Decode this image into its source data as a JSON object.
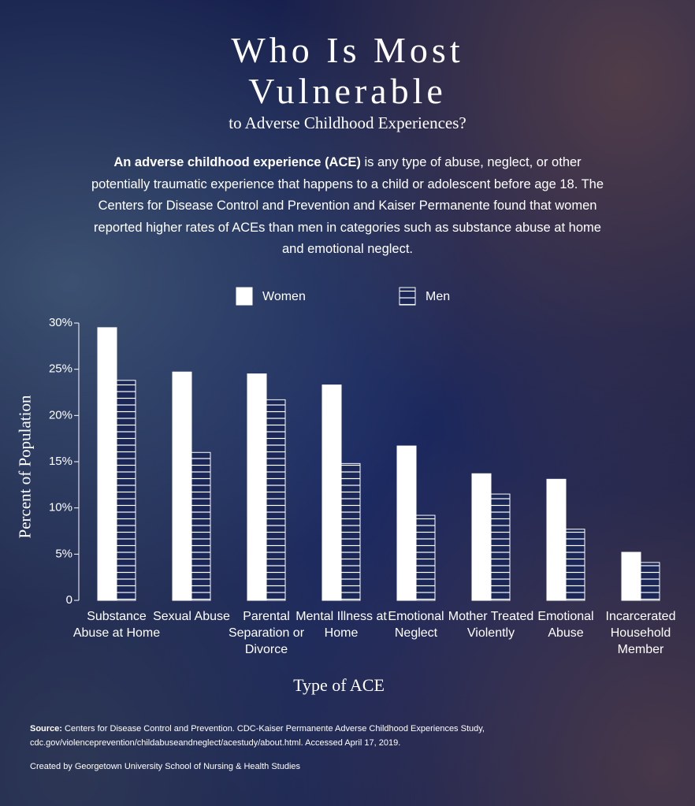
{
  "chart_data": {
    "type": "bar",
    "title": "Who Is Most Vulnerable",
    "subtitle": "to Adverse Childhood Experiences?",
    "description_bold": "An adverse childhood experience (ACE)",
    "description": "is any type of abuse, neglect, or other potentially traumatic experience that happens to a child or adolescent before age 18. The Centers for Disease Control and Prevention and Kaiser Permanente found that women reported higher rates of ACEs than men in categories such as substance abuse at home and emotional neglect.",
    "categories": [
      "Substance Abuse at Home",
      "Sexual Abuse",
      "Parental Separation or Divorce",
      "Mental Illness at Home",
      "Emotional Neglect",
      "Mother Treated Violently",
      "Emotional Abuse",
      "Incarcerated Household Member"
    ],
    "series": [
      {
        "name": "Women",
        "color": "#ffffff",
        "pattern": "solid",
        "values": [
          29.5,
          24.7,
          24.5,
          23.3,
          16.7,
          13.7,
          13.1,
          5.2
        ]
      },
      {
        "name": "Men",
        "color": "#ffffff",
        "pattern": "horizontal-lines",
        "values": [
          23.8,
          16.0,
          21.7,
          14.8,
          9.2,
          11.5,
          7.7,
          4.1
        ]
      }
    ],
    "ylim": [
      0,
      30
    ],
    "yticks": [
      0,
      {
        "value": 5,
        "label": "5%"
      },
      {
        "value": 10,
        "label": "10%"
      },
      {
        "value": 15,
        "label": "15%"
      },
      {
        "value": 20,
        "label": "20%"
      },
      {
        "value": 25,
        "label": "25%"
      },
      {
        "value": 30,
        "label": "30%"
      }
    ],
    "y_label": "Percent of Population",
    "x_label": "Type of ACE",
    "legend": "top",
    "source_label": "Source:",
    "source": "Centers for Disease Control and Prevention. CDC-Kaiser Permanente Adverse Childhood Experiences Study, cdc.gov/violenceprevention/childabuseandneglect/acestudy/about.html. Accessed April 17, 2019.",
    "credit": "Created by Georgetown University School of Nursing & Health Studies"
  }
}
